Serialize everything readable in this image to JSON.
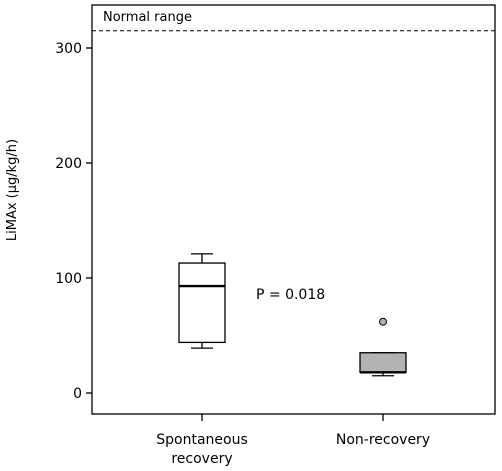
{
  "chart_data": {
    "type": "box",
    "ylabel": "LiMAx (µg/kg/h)",
    "xlabel": "",
    "ylim": [
      -20,
      335
    ],
    "yticks": [
      0,
      100,
      200,
      300
    ],
    "ytick_labels": [
      "0",
      "100",
      "200",
      "300"
    ],
    "grid": false,
    "categories": [
      "Spontaneous recovery",
      "Non-recovery"
    ],
    "category_labels": [
      [
        "Spontaneous",
        "recovery"
      ],
      [
        "Non-recovery"
      ]
    ],
    "boxes": [
      {
        "category": "Spontaneous recovery",
        "whisker_low": 39,
        "q1": 44,
        "median": 93,
        "q3": 113,
        "whisker_high": 121,
        "outliers": [],
        "fill": "#ffffff"
      },
      {
        "category": "Non-recovery",
        "whisker_low": 15,
        "q1": 18,
        "median": 18,
        "q3": 35,
        "whisker_high": 35,
        "outliers": [
          62
        ],
        "fill": "#b3b3b3"
      }
    ],
    "reference_line": {
      "value": 315,
      "label": "Normal range",
      "style": "dashed"
    },
    "annotations": [
      {
        "text": "P = 0.018"
      }
    ]
  }
}
